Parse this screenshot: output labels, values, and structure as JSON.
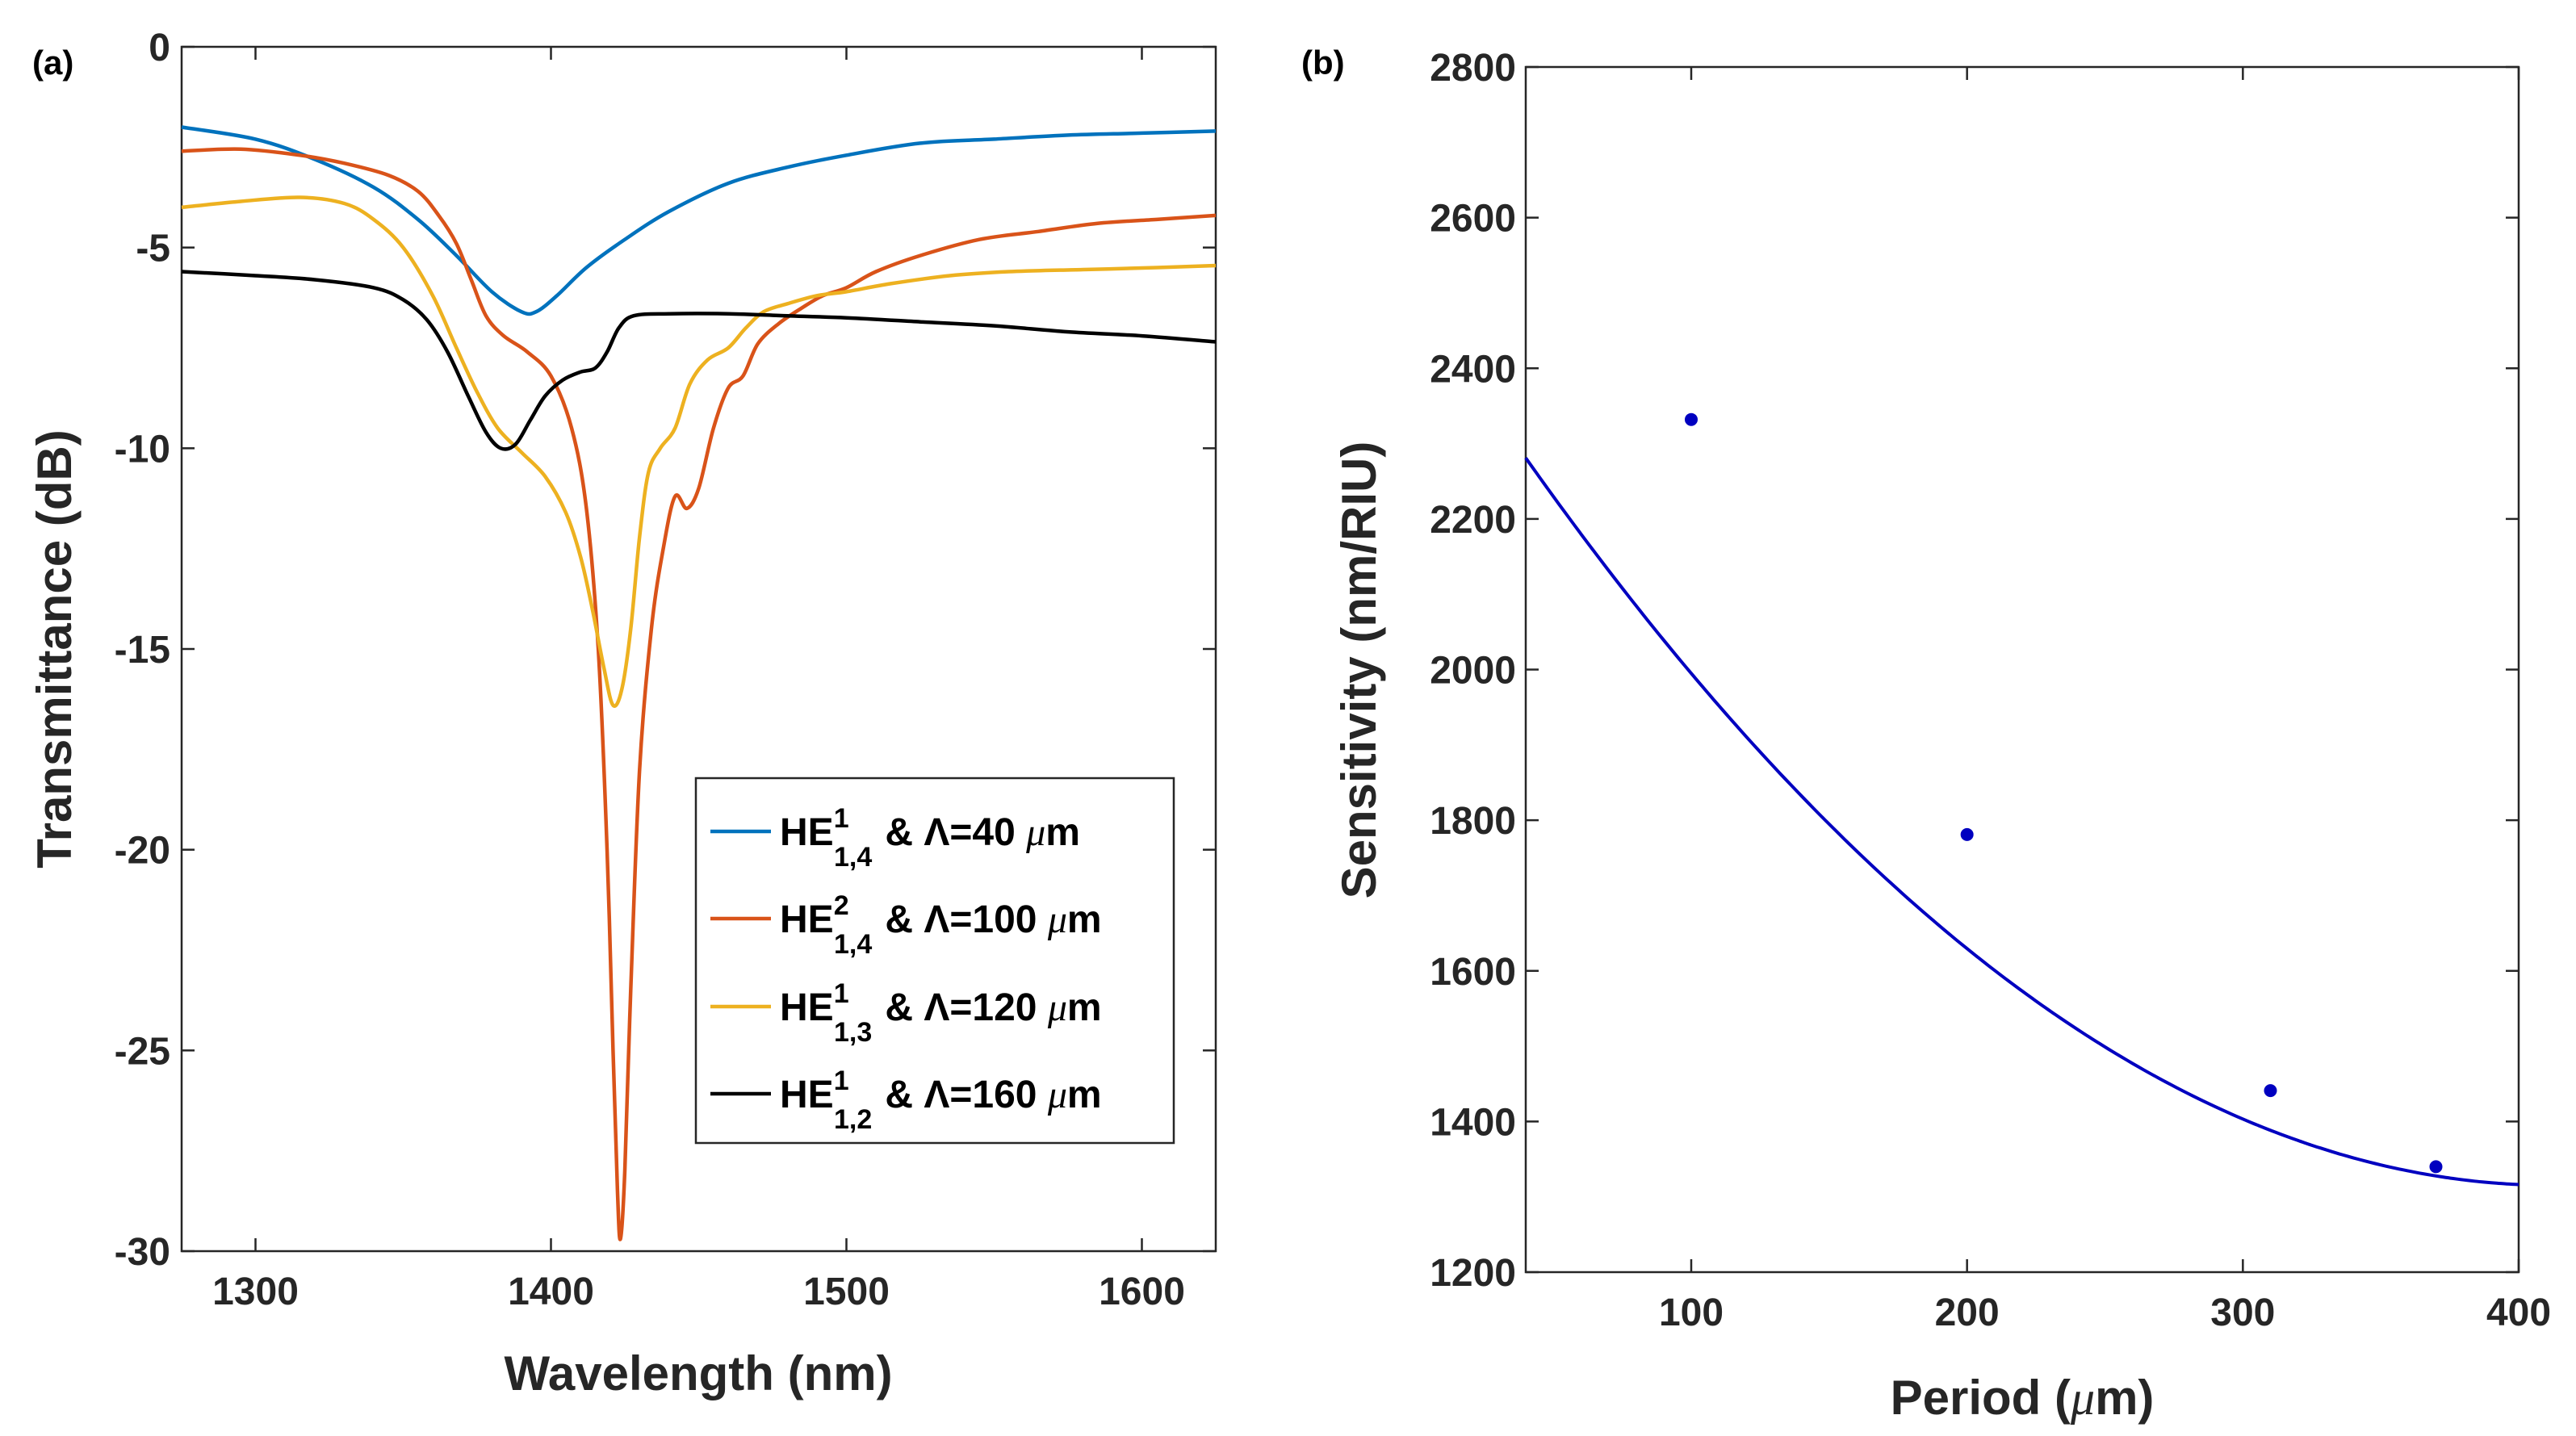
{
  "chart_data": [
    {
      "panel_label": "(a)",
      "type": "line",
      "title": "",
      "xlabel": "Wavelength (nm)",
      "ylabel": "Transmittance (dB)",
      "xlim": [
        1275,
        1625
      ],
      "ylim": [
        -30,
        0
      ],
      "xticks": [
        1300,
        1400,
        1500,
        1600
      ],
      "yticks": [
        0,
        -5,
        -10,
        -15,
        -20,
        -25,
        -30
      ],
      "legend_position": "bottom-right",
      "series": [
        {
          "name": "HE1,4 & Λ=40 μm",
          "legend": {
            "base": "HE",
            "sup": "1",
            "sub": "1,4",
            "rest": " & Λ=40 ",
            "unit_mu": "μ",
            "unit_rest": "m"
          },
          "color": "#0072BD",
          "points": [
            [
              1275,
              -2.0
            ],
            [
              1300,
              -2.3
            ],
            [
              1320,
              -2.8
            ],
            [
              1340,
              -3.5
            ],
            [
              1355,
              -4.3
            ],
            [
              1368,
              -5.2
            ],
            [
              1380,
              -6.1
            ],
            [
              1390,
              -6.6
            ],
            [
              1395,
              -6.6
            ],
            [
              1402,
              -6.2
            ],
            [
              1412,
              -5.5
            ],
            [
              1425,
              -4.8
            ],
            [
              1440,
              -4.1
            ],
            [
              1460,
              -3.4
            ],
            [
              1480,
              -3.0
            ],
            [
              1500,
              -2.7
            ],
            [
              1525,
              -2.4
            ],
            [
              1550,
              -2.3
            ],
            [
              1575,
              -2.2
            ],
            [
              1600,
              -2.15
            ],
            [
              1625,
              -2.1
            ]
          ]
        },
        {
          "name": "HE2,4 & Λ=100 μm",
          "legend": {
            "base": "HE",
            "sup": "2",
            "sub": "1,4",
            "rest": " & Λ=100 ",
            "unit_mu": "μ",
            "unit_rest": "m"
          },
          "color": "#D95319",
          "points": [
            [
              1275,
              -2.6
            ],
            [
              1295,
              -2.55
            ],
            [
              1315,
              -2.7
            ],
            [
              1330,
              -2.9
            ],
            [
              1345,
              -3.2
            ],
            [
              1355,
              -3.6
            ],
            [
              1362,
              -4.2
            ],
            [
              1368,
              -4.9
            ],
            [
              1373,
              -5.8
            ],
            [
              1378,
              -6.7
            ],
            [
              1384,
              -7.2
            ],
            [
              1392,
              -7.6
            ],
            [
              1400,
              -8.2
            ],
            [
              1407,
              -9.5
            ],
            [
              1412,
              -11.5
            ],
            [
              1416,
              -15.0
            ],
            [
              1419,
              -20.0
            ],
            [
              1421,
              -25.0
            ],
            [
              1422.5,
              -28.5
            ],
            [
              1423.5,
              -29.7
            ],
            [
              1425,
              -28.0
            ],
            [
              1427,
              -23.5
            ],
            [
              1430,
              -18.0
            ],
            [
              1434,
              -14.5
            ],
            [
              1438,
              -12.5
            ],
            [
              1442,
              -11.2
            ],
            [
              1446,
              -11.5
            ],
            [
              1450,
              -11.0
            ],
            [
              1455,
              -9.5
            ],
            [
              1460,
              -8.5
            ],
            [
              1465,
              -8.2
            ],
            [
              1470,
              -7.4
            ],
            [
              1477,
              -6.9
            ],
            [
              1485,
              -6.5
            ],
            [
              1492,
              -6.2
            ],
            [
              1500,
              -6.0
            ],
            [
              1510,
              -5.6
            ],
            [
              1525,
              -5.2
            ],
            [
              1545,
              -4.8
            ],
            [
              1565,
              -4.6
            ],
            [
              1585,
              -4.4
            ],
            [
              1605,
              -4.3
            ],
            [
              1625,
              -4.2
            ]
          ]
        },
        {
          "name": "HE1,3 & Λ=120 μm",
          "legend": {
            "base": "HE",
            "sup": "1",
            "sub": "1,3",
            "rest": " & Λ=120 ",
            "unit_mu": "μ",
            "unit_rest": "m"
          },
          "color": "#EDB120",
          "points": [
            [
              1275,
              -4.0
            ],
            [
              1295,
              -3.85
            ],
            [
              1315,
              -3.75
            ],
            [
              1330,
              -3.9
            ],
            [
              1340,
              -4.3
            ],
            [
              1350,
              -5.0
            ],
            [
              1360,
              -6.2
            ],
            [
              1368,
              -7.5
            ],
            [
              1375,
              -8.6
            ],
            [
              1382,
              -9.5
            ],
            [
              1390,
              -10.1
            ],
            [
              1398,
              -10.7
            ],
            [
              1405,
              -11.6
            ],
            [
              1410,
              -12.7
            ],
            [
              1414,
              -14.0
            ],
            [
              1418,
              -15.5
            ],
            [
              1421,
              -16.4
            ],
            [
              1424,
              -16.0
            ],
            [
              1427,
              -14.5
            ],
            [
              1430,
              -12.2
            ],
            [
              1433,
              -10.6
            ],
            [
              1437,
              -10.0
            ],
            [
              1442,
              -9.5
            ],
            [
              1447,
              -8.4
            ],
            [
              1453,
              -7.8
            ],
            [
              1460,
              -7.5
            ],
            [
              1466,
              -7.0
            ],
            [
              1472,
              -6.6
            ],
            [
              1480,
              -6.4
            ],
            [
              1490,
              -6.2
            ],
            [
              1500,
              -6.1
            ],
            [
              1515,
              -5.9
            ],
            [
              1535,
              -5.7
            ],
            [
              1555,
              -5.6
            ],
            [
              1580,
              -5.55
            ],
            [
              1605,
              -5.5
            ],
            [
              1625,
              -5.45
            ]
          ]
        },
        {
          "name": "HE1,2 & Λ=160 μm",
          "legend": {
            "base": "HE",
            "sup": "1",
            "sub": "1,2",
            "rest": " & Λ=160 ",
            "unit_mu": "μ",
            "unit_rest": "m"
          },
          "color": "#000000",
          "points": [
            [
              1275,
              -5.6
            ],
            [
              1300,
              -5.7
            ],
            [
              1320,
              -5.8
            ],
            [
              1340,
              -6.0
            ],
            [
              1350,
              -6.3
            ],
            [
              1358,
              -6.8
            ],
            [
              1365,
              -7.6
            ],
            [
              1372,
              -8.7
            ],
            [
              1378,
              -9.6
            ],
            [
              1383,
              -10.0
            ],
            [
              1388,
              -9.9
            ],
            [
              1393,
              -9.3
            ],
            [
              1398,
              -8.7
            ],
            [
              1404,
              -8.3
            ],
            [
              1410,
              -8.1
            ],
            [
              1415,
              -8.0
            ],
            [
              1419,
              -7.6
            ],
            [
              1423,
              -7.0
            ],
            [
              1428,
              -6.7
            ],
            [
              1440,
              -6.65
            ],
            [
              1460,
              -6.65
            ],
            [
              1480,
              -6.7
            ],
            [
              1500,
              -6.75
            ],
            [
              1525,
              -6.85
            ],
            [
              1550,
              -6.95
            ],
            [
              1575,
              -7.1
            ],
            [
              1600,
              -7.2
            ],
            [
              1625,
              -7.35
            ]
          ]
        }
      ]
    },
    {
      "panel_label": "(b)",
      "type": "line",
      "title": "",
      "xlabel": "Period (μm)",
      "xlabel_parts": {
        "pre": "Period (",
        "mu": "μ",
        "post": "m)"
      },
      "ylabel": "Sensitivity (nm/RIU)",
      "xlim": [
        40,
        400
      ],
      "ylim": [
        1200,
        2800
      ],
      "xticks": [
        100,
        200,
        300,
        400
      ],
      "yticks": [
        1200,
        1400,
        1600,
        1800,
        2000,
        2200,
        2400,
        2600,
        2800
      ],
      "series": [
        {
          "name": "fit",
          "color": "#0000C0",
          "curve": {
            "a": 0.00696,
            "b": -5.7424,
            "c": 2499.6
          }
        },
        {
          "name": "data",
          "color": "#0000C0",
          "marker": "dot",
          "points": [
            [
              100,
              2332
            ],
            [
              200,
              1781
            ],
            [
              310,
              1441
            ],
            [
              370,
              1340
            ]
          ]
        }
      ]
    }
  ]
}
